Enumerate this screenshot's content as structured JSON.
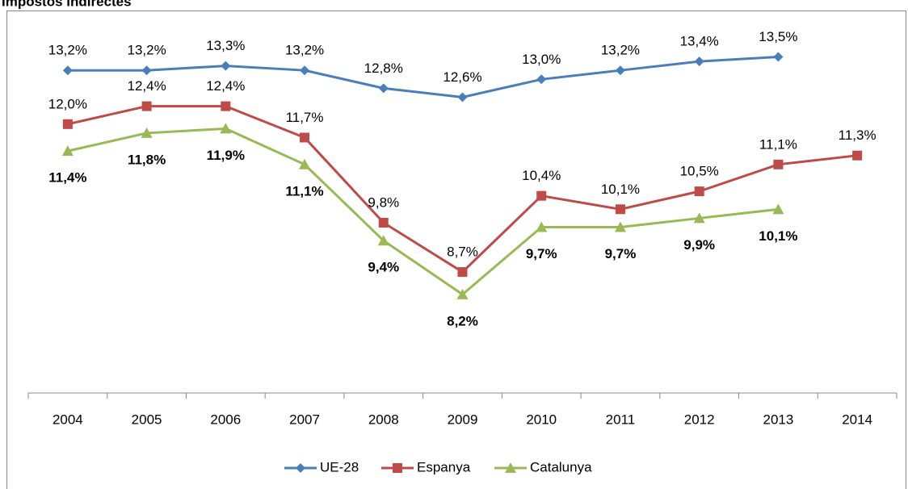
{
  "chart_data": {
    "type": "line",
    "title": "Impostos indirectes",
    "categories": [
      "2004",
      "2005",
      "2006",
      "2007",
      "2008",
      "2009",
      "2010",
      "2011",
      "2012",
      "2013",
      "2014"
    ],
    "ylim": [
      6,
      14.5
    ],
    "legend": "bottom",
    "series": [
      {
        "name": "UE-28",
        "color": "#4a7ebb",
        "marker": "diamond",
        "label_position": "above",
        "label_bold": false,
        "values": [
          13.2,
          13.2,
          13.3,
          13.2,
          12.8,
          12.6,
          13.0,
          13.2,
          13.4,
          13.5,
          null
        ],
        "value_labels": [
          "13,2%",
          "13,2%",
          "13,3%",
          "13,2%",
          "12,8%",
          "12,6%",
          "13,0%",
          "13,2%",
          "13,4%",
          "13,5%",
          null
        ]
      },
      {
        "name": "Espanya",
        "color": "#be4b48",
        "marker": "square",
        "label_position": "above",
        "label_bold": false,
        "values": [
          12.0,
          12.4,
          12.4,
          11.7,
          9.8,
          8.7,
          10.4,
          10.1,
          10.5,
          11.1,
          11.3
        ],
        "value_labels": [
          "12,0%",
          "12,4%",
          "12,4%",
          "11,7%",
          "9,8%",
          "8,7%",
          "10,4%",
          "10,1%",
          "10,5%",
          "11,1%",
          "11,3%"
        ]
      },
      {
        "name": "Catalunya",
        "color": "#98b954",
        "marker": "triangle",
        "label_position": "below",
        "label_bold": true,
        "values": [
          11.4,
          11.8,
          11.9,
          11.1,
          9.4,
          8.2,
          9.7,
          9.7,
          9.9,
          10.1,
          null
        ],
        "value_labels": [
          "11,4%",
          "11,8%",
          "11,9%",
          "11,1%",
          "9,4%",
          "8,2%",
          "9,7%",
          "9,7%",
          "9,9%",
          "10,1%",
          null
        ]
      }
    ]
  }
}
